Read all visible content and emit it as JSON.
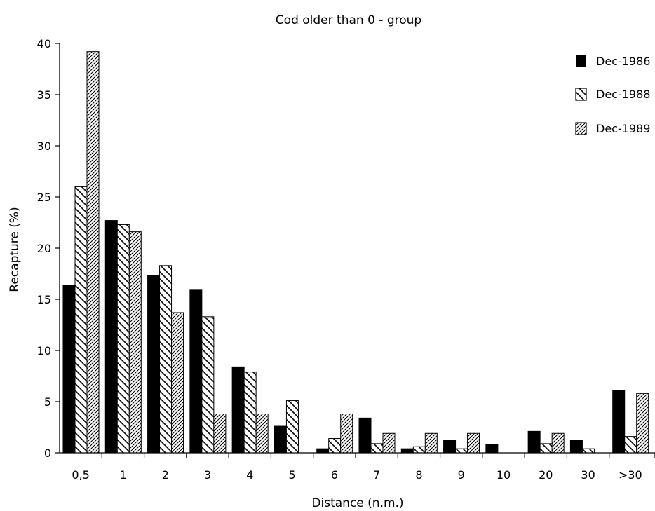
{
  "chart_data": {
    "type": "bar",
    "title": "Cod older than 0 - group",
    "xlabel": "Distance (n.m.)",
    "ylabel": "Recapture (%)",
    "ylim": [
      0,
      40
    ],
    "yticks": [
      0,
      5,
      10,
      15,
      20,
      25,
      30,
      35,
      40
    ],
    "categories": [
      "0,5",
      "1",
      "2",
      "3",
      "4",
      "5",
      "6",
      "7",
      "8",
      "9",
      "10",
      "20",
      "30",
      ">30"
    ],
    "legend_position": "top-right",
    "grid": false,
    "series": [
      {
        "name": "Dec-1986",
        "pattern": "solid",
        "values": [
          16.4,
          22.7,
          17.3,
          15.9,
          8.4,
          2.6,
          0.4,
          3.4,
          0.4,
          1.2,
          0.8,
          2.1,
          1.2,
          6.1
        ]
      },
      {
        "name": "Dec-1988",
        "pattern": "wide-hatch",
        "values": [
          26.0,
          22.3,
          18.3,
          13.3,
          7.9,
          5.1,
          1.4,
          0.9,
          0.6,
          0.4,
          0,
          0.9,
          0.4,
          1.6
        ]
      },
      {
        "name": "Dec-1989",
        "pattern": "fine-hatch",
        "values": [
          39.2,
          21.6,
          13.7,
          3.8,
          3.8,
          0,
          3.8,
          1.9,
          1.9,
          1.9,
          0,
          1.9,
          0,
          5.8
        ]
      }
    ],
    "colors": {
      "bar_fill": "#000000",
      "background": "#ffffff"
    }
  }
}
